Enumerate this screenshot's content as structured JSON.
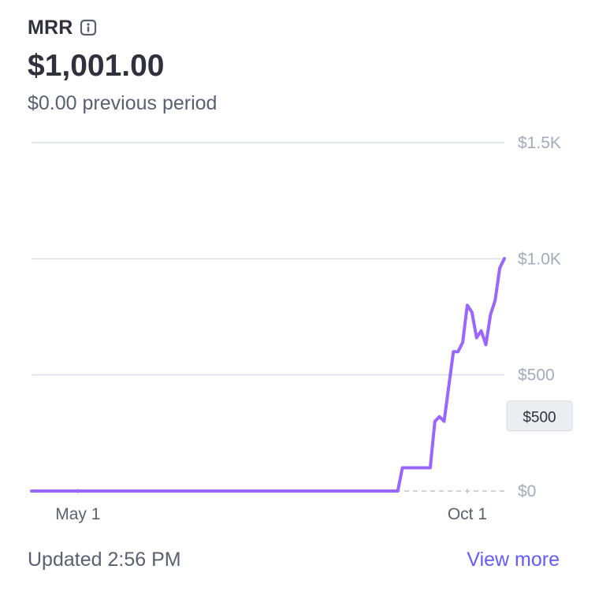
{
  "metric": {
    "name": "MRR",
    "icon": "info-icon",
    "value": "$1,001.00",
    "previous": "$0.00 previous period"
  },
  "footer": {
    "updated": "Updated 2:56 PM",
    "view_more": "View more"
  },
  "colors": {
    "line": "#9966ff",
    "grid": "#dcdfe4",
    "link": "#635bff"
  },
  "hover_badge": "$500",
  "chart_data": {
    "type": "line",
    "ylim": [
      0,
      1500
    ],
    "y_ticks": [
      {
        "value": 0,
        "label": "$0"
      },
      {
        "value": 500,
        "label": "$500"
      },
      {
        "value": 1000,
        "label": "$1.0K"
      },
      {
        "value": 1500,
        "label": "$1.5K"
      }
    ],
    "x_ticks": [
      {
        "value": 0.1,
        "label": "May 1"
      },
      {
        "value": 0.94,
        "label": "Oct 1"
      }
    ],
    "series": [
      {
        "values": [
          [
            0.0,
            0
          ],
          [
            0.79,
            0
          ],
          [
            0.8,
            100
          ],
          [
            0.86,
            100
          ],
          [
            0.87,
            300
          ],
          [
            0.88,
            320
          ],
          [
            0.89,
            300
          ],
          [
            0.9,
            450
          ],
          [
            0.91,
            600
          ],
          [
            0.92,
            600
          ],
          [
            0.93,
            640
          ],
          [
            0.94,
            800
          ],
          [
            0.95,
            770
          ],
          [
            0.96,
            660
          ],
          [
            0.97,
            690
          ],
          [
            0.98,
            630
          ],
          [
            0.99,
            760
          ],
          [
            1.0,
            820
          ],
          [
            1.01,
            960
          ],
          [
            1.02,
            1001
          ]
        ]
      },
      {
        "style": "dashed",
        "values": [
          [
            0.0,
            0
          ],
          [
            1.02,
            0
          ]
        ]
      }
    ]
  }
}
